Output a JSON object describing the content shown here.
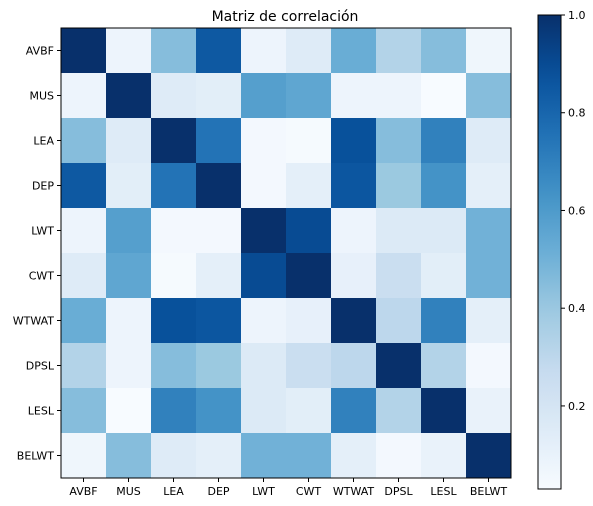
{
  "chart_data": {
    "type": "heatmap",
    "title": "Matriz de correlación",
    "xlabel": "",
    "ylabel": "",
    "categories": [
      "AVBF",
      "MUS",
      "LEA",
      "DEP",
      "LWT",
      "CWT",
      "WTWAT",
      "DPSL",
      "LESL",
      "BELWT"
    ],
    "values": [
      [
        1.0,
        0.08,
        0.45,
        0.85,
        0.08,
        0.15,
        0.52,
        0.33,
        0.45,
        0.07
      ],
      [
        0.08,
        1.0,
        0.15,
        0.13,
        0.58,
        0.55,
        0.08,
        0.08,
        0.03,
        0.45
      ],
      [
        0.45,
        0.15,
        1.0,
        0.75,
        0.05,
        0.04,
        0.88,
        0.45,
        0.7,
        0.15
      ],
      [
        0.85,
        0.13,
        0.75,
        1.0,
        0.05,
        0.12,
        0.86,
        0.4,
        0.63,
        0.12
      ],
      [
        0.08,
        0.58,
        0.05,
        0.05,
        1.0,
        0.9,
        0.08,
        0.16,
        0.16,
        0.5
      ],
      [
        0.15,
        0.55,
        0.04,
        0.12,
        0.9,
        1.0,
        0.11,
        0.25,
        0.13,
        0.5
      ],
      [
        0.52,
        0.08,
        0.88,
        0.86,
        0.08,
        0.11,
        1.0,
        0.3,
        0.7,
        0.12
      ],
      [
        0.33,
        0.08,
        0.45,
        0.4,
        0.16,
        0.25,
        0.3,
        1.0,
        0.33,
        0.05
      ],
      [
        0.45,
        0.03,
        0.7,
        0.63,
        0.16,
        0.13,
        0.7,
        0.33,
        1.0,
        0.1
      ],
      [
        0.07,
        0.45,
        0.15,
        0.12,
        0.5,
        0.5,
        0.12,
        0.05,
        0.1,
        1.0
      ]
    ],
    "colormap": "Blues",
    "color_low": "#f7fbff",
    "color_high": "#08306b",
    "colorbar": {
      "range": [
        0.03,
        1.0
      ],
      "ticks": [
        0.2,
        0.4,
        0.6,
        0.8,
        1.0
      ],
      "tick_labels": [
        "0.2",
        "0.4",
        "0.6",
        "0.8",
        "1.0"
      ]
    },
    "grid": false
  }
}
